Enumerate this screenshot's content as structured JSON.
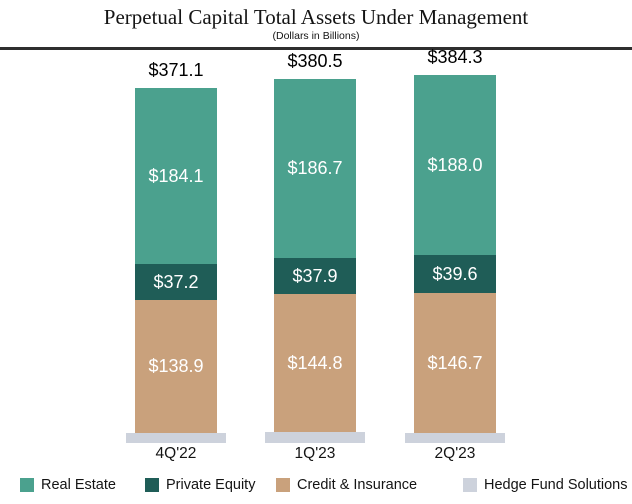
{
  "chart_data": {
    "type": "bar",
    "stacked": true,
    "title": "Perpetual Capital Total Assets Under Management",
    "subtitle": "(Dollars in Billions)",
    "categories": [
      "4Q'22",
      "1Q'23",
      "2Q'23"
    ],
    "series": [
      {
        "name": "Hedge Fund Solutions",
        "color": "#CDD2DC",
        "values": [
          10.9,
          11.1,
          10.0
        ]
      },
      {
        "name": "Credit & Insurance",
        "color": "#C9A17C",
        "values": [
          138.9,
          144.8,
          146.7
        ]
      },
      {
        "name": "Private Equity",
        "color": "#1F5D57",
        "values": [
          37.2,
          37.9,
          39.6
        ]
      },
      {
        "name": "Real Estate",
        "color": "#4BA18E",
        "values": [
          184.1,
          186.7,
          188.0
        ]
      }
    ],
    "totals": [
      371.1,
      380.5,
      384.3
    ],
    "value_prefix": "$",
    "value_decimals": 1,
    "legend": [
      "Real Estate",
      "Private Equity",
      "Credit & Insurance",
      "Hedge Fund Solutions"
    ],
    "legend_position": "bottom",
    "grid": false,
    "axes_visible": false
  }
}
